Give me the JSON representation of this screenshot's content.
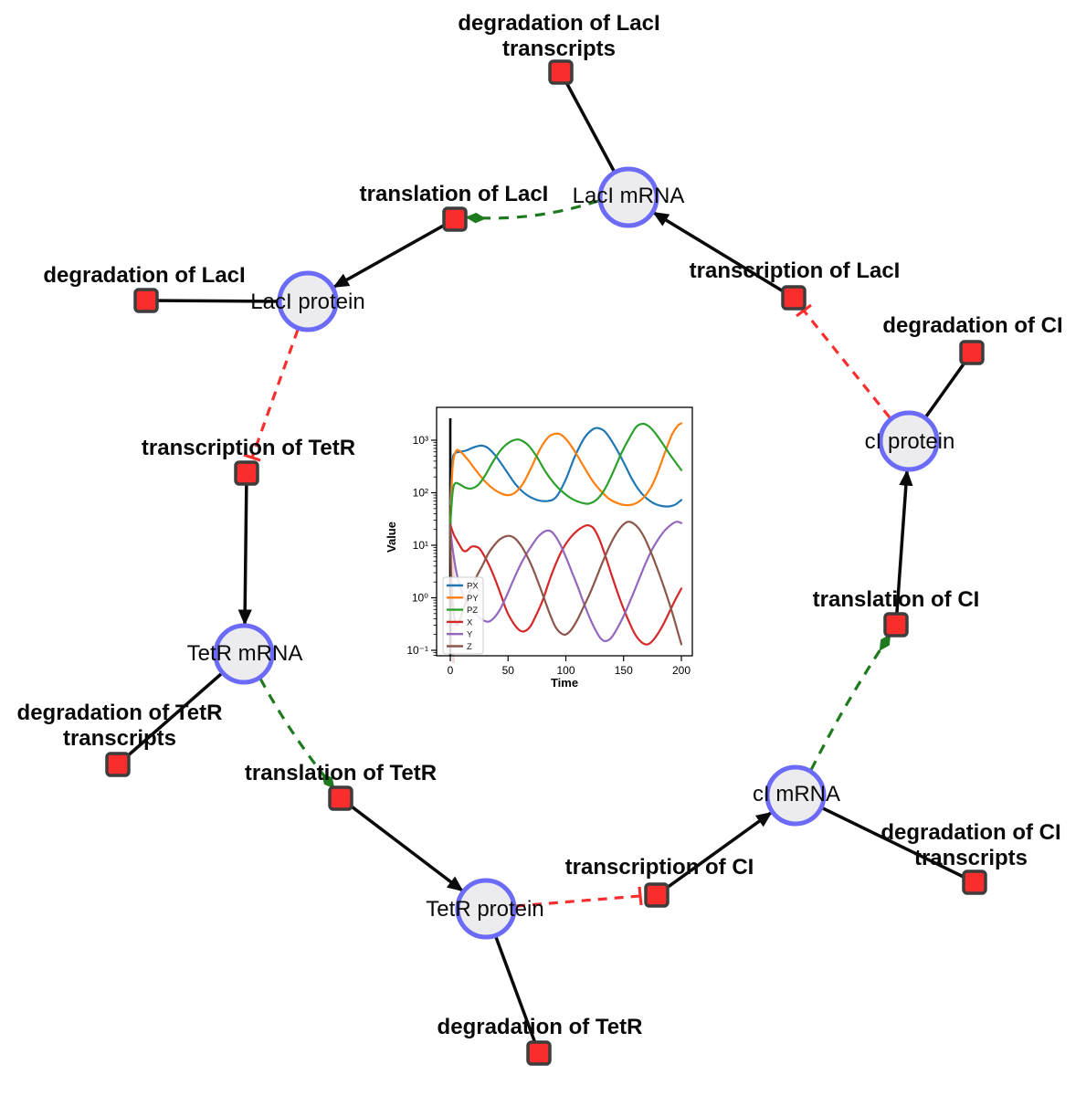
{
  "network": {
    "species": {
      "laci_mrna": "LacI mRNA",
      "laci_protein": "LacI protein",
      "tetr_mrna": "TetR mRNA",
      "tetr_protein": "TetR protein",
      "ci_mrna": "cI mRNA",
      "ci_protein": "cI protein"
    },
    "reactions": {
      "deg_laci_transcripts": "degradation of LacI transcripts",
      "translation_laci": "translation of LacI",
      "deg_laci": "degradation of LacI",
      "transcription_laci": "transcription of LacI",
      "deg_ci": "degradation of CI",
      "transcription_tetr": "transcription of TetR",
      "deg_tetr_transcripts": "degradation of TetR transcripts",
      "translation_tetr": "translation of TetR",
      "deg_tetr": "degradation of TetR",
      "transcription_ci": "transcription of CI",
      "deg_ci_transcripts": "degradation of CI transcripts",
      "translation_ci": "translation of CI"
    },
    "colors": {
      "species_fill": "#ececee",
      "species_stroke": "#6b6bf8",
      "reaction_fill": "#fa2d2d",
      "reaction_stroke": "#3d3d3d",
      "edge_black": "#0a0a0a",
      "edge_activation_green": "#1f7a1f",
      "edge_inhibition_red": "#fb2e2e"
    }
  },
  "chart_data": {
    "type": "line",
    "title": "",
    "xlabel": "Time",
    "ylabel": "Value",
    "x_ticks": [
      0,
      50,
      100,
      150,
      200
    ],
    "y_ticks": [
      "10³",
      "10²",
      "10¹",
      "10⁰",
      "10⁻¹"
    ],
    "y_tick_exponents": [
      3,
      2,
      1,
      0,
      -1
    ],
    "xlim": [
      -12,
      210
    ],
    "ylog": true,
    "ylim": [
      0.08,
      4000
    ],
    "grid": false,
    "legend_position": "lower left",
    "annotations": [
      {
        "type": "vline",
        "x": 0,
        "color": "#000000"
      }
    ],
    "series": [
      {
        "name": "PX",
        "color": "#1f77b4",
        "points": [
          [
            0,
            60
          ],
          [
            2,
            400
          ],
          [
            4,
            560
          ],
          [
            8,
            600
          ],
          [
            14,
            640
          ],
          [
            20,
            730
          ],
          [
            27,
            790
          ],
          [
            33,
            700
          ],
          [
            40,
            480
          ],
          [
            48,
            270
          ],
          [
            56,
            150
          ],
          [
            65,
            95
          ],
          [
            75,
            73
          ],
          [
            85,
            70
          ],
          [
            92,
            85
          ],
          [
            100,
            180
          ],
          [
            108,
            500
          ],
          [
            116,
            1100
          ],
          [
            123,
            1600
          ],
          [
            128,
            1700
          ],
          [
            134,
            1450
          ],
          [
            142,
            800
          ],
          [
            150,
            380
          ],
          [
            158,
            170
          ],
          [
            166,
            95
          ],
          [
            175,
            65
          ],
          [
            183,
            56
          ],
          [
            190,
            55
          ],
          [
            195,
            60
          ],
          [
            200,
            73
          ]
        ]
      },
      {
        "name": "PY",
        "color": "#ff7f0e",
        "points": [
          [
            0,
            25
          ],
          [
            2,
            300
          ],
          [
            5,
            620
          ],
          [
            9,
            600
          ],
          [
            15,
            430
          ],
          [
            22,
            270
          ],
          [
            30,
            165
          ],
          [
            38,
            115
          ],
          [
            45,
            95
          ],
          [
            50,
            90
          ],
          [
            56,
            100
          ],
          [
            63,
            150
          ],
          [
            70,
            300
          ],
          [
            78,
            700
          ],
          [
            85,
            1150
          ],
          [
            90,
            1320
          ],
          [
            95,
            1300
          ],
          [
            101,
            1000
          ],
          [
            108,
            600
          ],
          [
            115,
            330
          ],
          [
            123,
            170
          ],
          [
            130,
            110
          ],
          [
            138,
            75
          ],
          [
            146,
            62
          ],
          [
            153,
            58
          ],
          [
            160,
            62
          ],
          [
            167,
            80
          ],
          [
            174,
            130
          ],
          [
            180,
            260
          ],
          [
            186,
            600
          ],
          [
            192,
            1300
          ],
          [
            197,
            1900
          ],
          [
            200,
            2100
          ]
        ]
      },
      {
        "name": "PZ",
        "color": "#2ca02c",
        "points": [
          [
            0,
            25
          ],
          [
            2,
            100
          ],
          [
            4,
            150
          ],
          [
            8,
            145
          ],
          [
            13,
            125
          ],
          [
            18,
            120
          ],
          [
            24,
            140
          ],
          [
            30,
            210
          ],
          [
            36,
            360
          ],
          [
            43,
            620
          ],
          [
            50,
            880
          ],
          [
            57,
            1030
          ],
          [
            62,
            980
          ],
          [
            68,
            780
          ],
          [
            75,
            480
          ],
          [
            82,
            260
          ],
          [
            90,
            150
          ],
          [
            98,
            100
          ],
          [
            106,
            75
          ],
          [
            114,
            64
          ],
          [
            120,
            62
          ],
          [
            127,
            75
          ],
          [
            134,
            120
          ],
          [
            141,
            250
          ],
          [
            148,
            560
          ],
          [
            155,
            1100
          ],
          [
            161,
            1800
          ],
          [
            166,
            2050
          ],
          [
            171,
            1900
          ],
          [
            177,
            1400
          ],
          [
            184,
            850
          ],
          [
            191,
            500
          ],
          [
            200,
            270
          ]
        ]
      },
      {
        "name": "X",
        "color": "#d62728",
        "points": [
          [
            0,
            25
          ],
          [
            3,
            16
          ],
          [
            7,
            11
          ],
          [
            11,
            8
          ],
          [
            14,
            7.8
          ],
          [
            18,
            9.3
          ],
          [
            21,
            9.5
          ],
          [
            25,
            8.8
          ],
          [
            29,
            6.5
          ],
          [
            34,
            4
          ],
          [
            39,
            2.2
          ],
          [
            44,
            1.1
          ],
          [
            49,
            0.55
          ],
          [
            55,
            0.32
          ],
          [
            60,
            0.24
          ],
          [
            64,
            0.23
          ],
          [
            69,
            0.28
          ],
          [
            74,
            0.45
          ],
          [
            80,
            0.9
          ],
          [
            86,
            2.2
          ],
          [
            92,
            4.8
          ],
          [
            98,
            9
          ],
          [
            104,
            14
          ],
          [
            110,
            19
          ],
          [
            115,
            22.5
          ],
          [
            119,
            24
          ],
          [
            124,
            21
          ],
          [
            129,
            13
          ],
          [
            134,
            6.5
          ],
          [
            139,
            3
          ],
          [
            144,
            1.4
          ],
          [
            149,
            0.7
          ],
          [
            154,
            0.38
          ],
          [
            160,
            0.2
          ],
          [
            166,
            0.14
          ],
          [
            171,
            0.13
          ],
          [
            176,
            0.16
          ],
          [
            182,
            0.25
          ],
          [
            188,
            0.45
          ],
          [
            194,
            0.85
          ],
          [
            200,
            1.5
          ]
        ]
      },
      {
        "name": "Y",
        "color": "#9467bd",
        "points": [
          [
            0,
            20
          ],
          [
            3,
            6
          ],
          [
            6,
            2.6
          ],
          [
            10,
            1.3
          ],
          [
            14,
            0.85
          ],
          [
            18,
            0.62
          ],
          [
            23,
            0.47
          ],
          [
            28,
            0.38
          ],
          [
            33,
            0.35
          ],
          [
            38,
            0.42
          ],
          [
            43,
            0.6
          ],
          [
            48,
            1
          ],
          [
            53,
            1.8
          ],
          [
            58,
            3.2
          ],
          [
            64,
            5.8
          ],
          [
            70,
            9.5
          ],
          [
            76,
            14.5
          ],
          [
            82,
            18.5
          ],
          [
            86,
            18.8
          ],
          [
            90,
            16
          ],
          [
            95,
            10.5
          ],
          [
            100,
            6
          ],
          [
            105,
            3.2
          ],
          [
            110,
            1.7
          ],
          [
            115,
            0.85
          ],
          [
            120,
            0.45
          ],
          [
            125,
            0.26
          ],
          [
            130,
            0.17
          ],
          [
            134,
            0.15
          ],
          [
            139,
            0.17
          ],
          [
            144,
            0.25
          ],
          [
            150,
            0.45
          ],
          [
            156,
            0.9
          ],
          [
            162,
            1.9
          ],
          [
            168,
            4
          ],
          [
            174,
            7.8
          ],
          [
            180,
            13
          ],
          [
            186,
            19.5
          ],
          [
            192,
            25.5
          ],
          [
            196,
            28
          ],
          [
            200,
            26.5
          ]
        ]
      },
      {
        "name": "Z",
        "color": "#8c564b",
        "points": [
          [
            0,
            25
          ],
          [
            1,
            2
          ],
          [
            3,
            0.5
          ],
          [
            6,
            0.3
          ],
          [
            10,
            0.5
          ],
          [
            14,
            0.9
          ],
          [
            18,
            1.5
          ],
          [
            23,
            2.6
          ],
          [
            28,
            4.2
          ],
          [
            33,
            7
          ],
          [
            38,
            10
          ],
          [
            43,
            13
          ],
          [
            48,
            14.8
          ],
          [
            52,
            15
          ],
          [
            56,
            13.5
          ],
          [
            61,
            10
          ],
          [
            66,
            6.5
          ],
          [
            71,
            3.8
          ],
          [
            76,
            2
          ],
          [
            81,
            1
          ],
          [
            86,
            0.5
          ],
          [
            91,
            0.28
          ],
          [
            96,
            0.21
          ],
          [
            100,
            0.2
          ],
          [
            105,
            0.25
          ],
          [
            110,
            0.38
          ],
          [
            115,
            0.65
          ],
          [
            120,
            1.1
          ],
          [
            125,
            2
          ],
          [
            130,
            3.8
          ],
          [
            135,
            7
          ],
          [
            140,
            12
          ],
          [
            145,
            18.5
          ],
          [
            150,
            25
          ],
          [
            154,
            28
          ],
          [
            158,
            26.5
          ],
          [
            163,
            21
          ],
          [
            168,
            14
          ],
          [
            173,
            8
          ],
          [
            178,
            4.2
          ],
          [
            183,
            2.1
          ],
          [
            188,
            1
          ],
          [
            193,
            0.45
          ],
          [
            197,
            0.22
          ],
          [
            200,
            0.13
          ]
        ]
      }
    ]
  }
}
